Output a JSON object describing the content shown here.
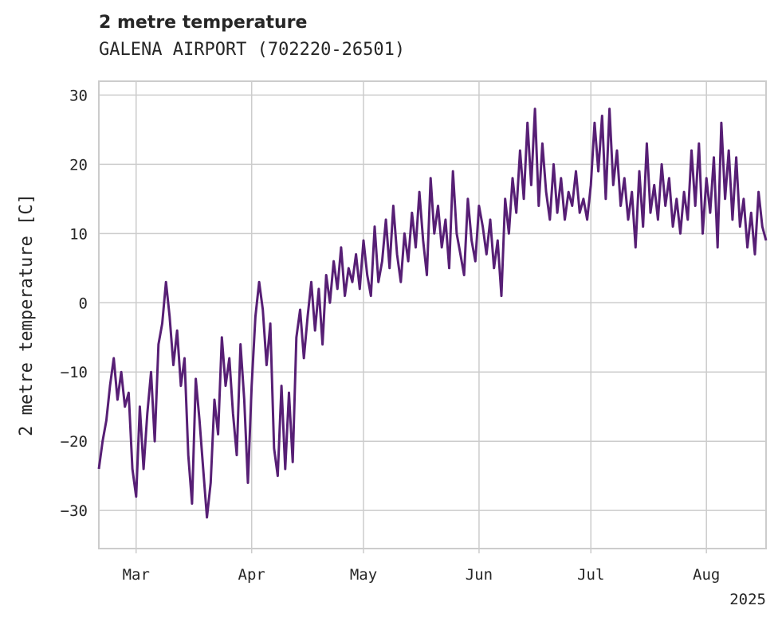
{
  "header": {
    "title": "2 metre temperature",
    "subtitle": "GALENA AIRPORT (702220-26501)"
  },
  "chart_data": {
    "type": "line",
    "title": "2 metre temperature",
    "subtitle": "GALENA AIRPORT (702220-26501)",
    "xlabel": "",
    "ylabel": "2 metre temperature [C]",
    "x_tick_labels": [
      "Mar",
      "Apr",
      "May",
      "Jun",
      "Jul",
      "Aug"
    ],
    "x_offset_label": "2025",
    "y_ticks": [
      -30,
      -20,
      -10,
      0,
      10,
      20,
      30
    ],
    "xlim": [
      "2025-02-19",
      "2025-08-17"
    ],
    "ylim": [
      -35.5,
      32
    ],
    "grid": true,
    "colors": {
      "line": "#571f75",
      "grid": "#cccccc",
      "axes": "#cccccc",
      "text": "#262626"
    },
    "series": [
      {
        "values": [
          [
            "2025-02-19",
            -24
          ],
          [
            "2025-02-20",
            -20
          ],
          [
            "2025-02-21",
            -17
          ],
          [
            "2025-02-22",
            -12
          ],
          [
            "2025-02-23",
            -8
          ],
          [
            "2025-02-24",
            -14
          ],
          [
            "2025-02-25",
            -10
          ],
          [
            "2025-02-26",
            -15
          ],
          [
            "2025-02-27",
            -13
          ],
          [
            "2025-02-28",
            -24
          ],
          [
            "2025-03-01",
            -28
          ],
          [
            "2025-03-02",
            -15
          ],
          [
            "2025-03-03",
            -24
          ],
          [
            "2025-03-04",
            -16
          ],
          [
            "2025-03-05",
            -10
          ],
          [
            "2025-03-06",
            -20
          ],
          [
            "2025-03-07",
            -6
          ],
          [
            "2025-03-08",
            -3
          ],
          [
            "2025-03-09",
            3
          ],
          [
            "2025-03-10",
            -2
          ],
          [
            "2025-03-11",
            -9
          ],
          [
            "2025-03-12",
            -4
          ],
          [
            "2025-03-13",
            -12
          ],
          [
            "2025-03-14",
            -8
          ],
          [
            "2025-03-15",
            -22
          ],
          [
            "2025-03-16",
            -29
          ],
          [
            "2025-03-17",
            -11
          ],
          [
            "2025-03-18",
            -17
          ],
          [
            "2025-03-19",
            -24
          ],
          [
            "2025-03-20",
            -31
          ],
          [
            "2025-03-21",
            -26
          ],
          [
            "2025-03-22",
            -14
          ],
          [
            "2025-03-23",
            -19
          ],
          [
            "2025-03-24",
            -5
          ],
          [
            "2025-03-25",
            -12
          ],
          [
            "2025-03-26",
            -8
          ],
          [
            "2025-03-27",
            -16
          ],
          [
            "2025-03-28",
            -22
          ],
          [
            "2025-03-29",
            -6
          ],
          [
            "2025-03-30",
            -14
          ],
          [
            "2025-03-31",
            -26
          ],
          [
            "2025-04-01",
            -12
          ],
          [
            "2025-04-02",
            -2
          ],
          [
            "2025-04-03",
            3
          ],
          [
            "2025-04-04",
            -1
          ],
          [
            "2025-04-05",
            -9
          ],
          [
            "2025-04-06",
            -3
          ],
          [
            "2025-04-07",
            -21
          ],
          [
            "2025-04-08",
            -25
          ],
          [
            "2025-04-09",
            -12
          ],
          [
            "2025-04-10",
            -24
          ],
          [
            "2025-04-11",
            -13
          ],
          [
            "2025-04-12",
            -23
          ],
          [
            "2025-04-13",
            -5
          ],
          [
            "2025-04-14",
            -1
          ],
          [
            "2025-04-15",
            -8
          ],
          [
            "2025-04-16",
            -2
          ],
          [
            "2025-04-17",
            3
          ],
          [
            "2025-04-18",
            -4
          ],
          [
            "2025-04-19",
            2
          ],
          [
            "2025-04-20",
            -6
          ],
          [
            "2025-04-21",
            4
          ],
          [
            "2025-04-22",
            0
          ],
          [
            "2025-04-23",
            6
          ],
          [
            "2025-04-24",
            2
          ],
          [
            "2025-04-25",
            8
          ],
          [
            "2025-04-26",
            1
          ],
          [
            "2025-04-27",
            5
          ],
          [
            "2025-04-28",
            3
          ],
          [
            "2025-04-29",
            7
          ],
          [
            "2025-04-30",
            2
          ],
          [
            "2025-05-01",
            9
          ],
          [
            "2025-05-02",
            4
          ],
          [
            "2025-05-03",
            1
          ],
          [
            "2025-05-04",
            11
          ],
          [
            "2025-05-05",
            3
          ],
          [
            "2025-05-06",
            6
          ],
          [
            "2025-05-07",
            12
          ],
          [
            "2025-05-08",
            5
          ],
          [
            "2025-05-09",
            14
          ],
          [
            "2025-05-10",
            7
          ],
          [
            "2025-05-11",
            3
          ],
          [
            "2025-05-12",
            10
          ],
          [
            "2025-05-13",
            6
          ],
          [
            "2025-05-14",
            13
          ],
          [
            "2025-05-15",
            8
          ],
          [
            "2025-05-16",
            16
          ],
          [
            "2025-05-17",
            9
          ],
          [
            "2025-05-18",
            4
          ],
          [
            "2025-05-19",
            18
          ],
          [
            "2025-05-20",
            10
          ],
          [
            "2025-05-21",
            14
          ],
          [
            "2025-05-22",
            8
          ],
          [
            "2025-05-23",
            12
          ],
          [
            "2025-05-24",
            5
          ],
          [
            "2025-05-25",
            19
          ],
          [
            "2025-05-26",
            10
          ],
          [
            "2025-05-27",
            7
          ],
          [
            "2025-05-28",
            4
          ],
          [
            "2025-05-29",
            15
          ],
          [
            "2025-05-30",
            9
          ],
          [
            "2025-05-31",
            6
          ],
          [
            "2025-06-01",
            14
          ],
          [
            "2025-06-02",
            11
          ],
          [
            "2025-06-03",
            7
          ],
          [
            "2025-06-04",
            12
          ],
          [
            "2025-06-05",
            5
          ],
          [
            "2025-06-06",
            9
          ],
          [
            "2025-06-07",
            1
          ],
          [
            "2025-06-08",
            15
          ],
          [
            "2025-06-09",
            10
          ],
          [
            "2025-06-10",
            18
          ],
          [
            "2025-06-11",
            13
          ],
          [
            "2025-06-12",
            22
          ],
          [
            "2025-06-13",
            15
          ],
          [
            "2025-06-14",
            26
          ],
          [
            "2025-06-15",
            17
          ],
          [
            "2025-06-16",
            28
          ],
          [
            "2025-06-17",
            14
          ],
          [
            "2025-06-18",
            23
          ],
          [
            "2025-06-19",
            16
          ],
          [
            "2025-06-20",
            12
          ],
          [
            "2025-06-21",
            20
          ],
          [
            "2025-06-22",
            13
          ],
          [
            "2025-06-23",
            18
          ],
          [
            "2025-06-24",
            12
          ],
          [
            "2025-06-25",
            16
          ],
          [
            "2025-06-26",
            14
          ],
          [
            "2025-06-27",
            19
          ],
          [
            "2025-06-28",
            13
          ],
          [
            "2025-06-29",
            15
          ],
          [
            "2025-06-30",
            12
          ],
          [
            "2025-07-01",
            17
          ],
          [
            "2025-07-02",
            26
          ],
          [
            "2025-07-03",
            19
          ],
          [
            "2025-07-04",
            27
          ],
          [
            "2025-07-05",
            15
          ],
          [
            "2025-07-06",
            28
          ],
          [
            "2025-07-07",
            17
          ],
          [
            "2025-07-08",
            22
          ],
          [
            "2025-07-09",
            14
          ],
          [
            "2025-07-10",
            18
          ],
          [
            "2025-07-11",
            12
          ],
          [
            "2025-07-12",
            16
          ],
          [
            "2025-07-13",
            8
          ],
          [
            "2025-07-14",
            19
          ],
          [
            "2025-07-15",
            11
          ],
          [
            "2025-07-16",
            23
          ],
          [
            "2025-07-17",
            13
          ],
          [
            "2025-07-18",
            17
          ],
          [
            "2025-07-19",
            12
          ],
          [
            "2025-07-20",
            20
          ],
          [
            "2025-07-21",
            14
          ],
          [
            "2025-07-22",
            18
          ],
          [
            "2025-07-23",
            11
          ],
          [
            "2025-07-24",
            15
          ],
          [
            "2025-07-25",
            10
          ],
          [
            "2025-07-26",
            16
          ],
          [
            "2025-07-27",
            12
          ],
          [
            "2025-07-28",
            22
          ],
          [
            "2025-07-29",
            14
          ],
          [
            "2025-07-30",
            23
          ],
          [
            "2025-07-31",
            10
          ],
          [
            "2025-08-01",
            18
          ],
          [
            "2025-08-02",
            13
          ],
          [
            "2025-08-03",
            21
          ],
          [
            "2025-08-04",
            8
          ],
          [
            "2025-08-05",
            26
          ],
          [
            "2025-08-06",
            15
          ],
          [
            "2025-08-07",
            22
          ],
          [
            "2025-08-08",
            12
          ],
          [
            "2025-08-09",
            21
          ],
          [
            "2025-08-10",
            11
          ],
          [
            "2025-08-11",
            15
          ],
          [
            "2025-08-12",
            8
          ],
          [
            "2025-08-13",
            13
          ],
          [
            "2025-08-14",
            7
          ],
          [
            "2025-08-15",
            16
          ],
          [
            "2025-08-16",
            11
          ],
          [
            "2025-08-17",
            9
          ]
        ]
      }
    ]
  }
}
